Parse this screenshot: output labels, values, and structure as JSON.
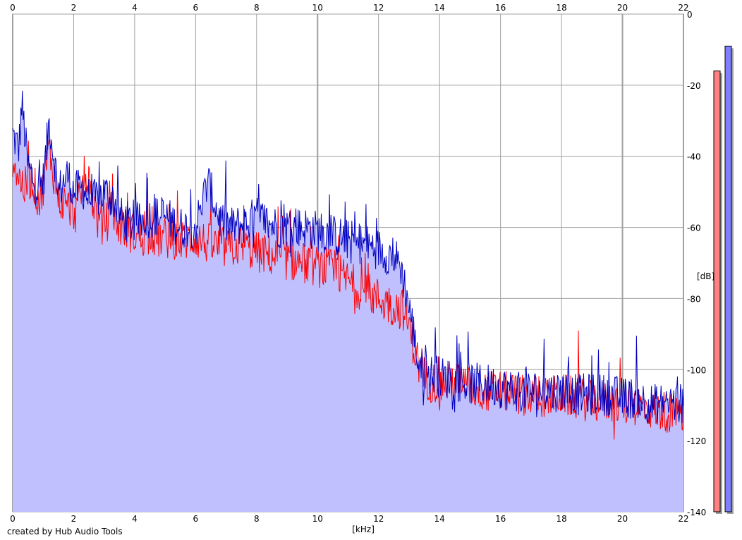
{
  "chart_data": {
    "type": "area",
    "xlabel": "[kHz]",
    "ylabel": "[dB]",
    "xlim": [
      0,
      22
    ],
    "ylim": [
      -140,
      0
    ],
    "x_ticks": [
      "0",
      "2",
      "4",
      "6",
      "8",
      "10",
      "12",
      "14",
      "16",
      "18",
      "20",
      "22"
    ],
    "y_ticks": [
      "0",
      "-20",
      "-40",
      "-60",
      "-80",
      "-100",
      "-120",
      "-140"
    ],
    "grid": true,
    "legend": "none",
    "series": [
      {
        "color": "#0000c0",
        "fill": "#c0c0ff",
        "x": [
          0,
          0.2,
          0.3,
          0.5,
          0.8,
          1.0,
          1.2,
          1.5,
          1.8,
          2.0,
          2.3,
          2.6,
          3.0,
          3.3,
          3.6,
          4.0,
          4.5,
          5.0,
          5.5,
          6.0,
          6.4,
          6.8,
          7.2,
          7.6,
          8.0,
          8.4,
          8.8,
          9.2,
          9.6,
          10.0,
          10.4,
          10.8,
          11.2,
          11.6,
          12.0,
          12.4,
          12.7,
          12.9,
          13.1,
          13.3,
          13.5,
          14.0,
          14.5,
          15.0,
          15.5,
          16.0,
          16.5,
          17.0,
          17.5,
          18.0,
          18.5,
          19.0,
          19.5,
          20.0,
          20.5,
          21.0,
          21.5,
          22.0
        ],
        "values": [
          -34,
          -38,
          -25,
          -43,
          -49,
          -47,
          -30,
          -50,
          -45,
          -50,
          -49,
          -53,
          -50,
          -52,
          -58,
          -59,
          -57,
          -57,
          -60,
          -60,
          -47,
          -58,
          -60,
          -59,
          -57,
          -59,
          -60,
          -60,
          -60,
          -61,
          -62,
          -63,
          -64,
          -65,
          -66,
          -68,
          -70,
          -78,
          -87,
          -98,
          -101,
          -102,
          -103,
          -104,
          -104,
          -105,
          -106,
          -106,
          -106,
          -106,
          -107,
          -107,
          -107,
          -108,
          -108,
          -110,
          -109,
          -110
        ]
      },
      {
        "color": "#ff0000",
        "x": [
          0,
          0.2,
          0.4,
          0.6,
          0.9,
          1.2,
          1.5,
          1.8,
          2.1,
          2.4,
          2.8,
          3.2,
          3.6,
          4.0,
          4.5,
          5.0,
          5.5,
          6.0,
          6.5,
          7.0,
          7.5,
          8.0,
          8.5,
          9.0,
          9.5,
          10.0,
          10.5,
          11.0,
          11.5,
          12.0,
          12.4,
          12.8,
          13.0,
          13.2,
          13.4,
          13.6,
          14.0,
          14.5,
          15.0,
          15.5,
          16.0,
          16.5,
          17.0,
          17.5,
          18.0,
          18.5,
          19.0,
          19.5,
          20.0,
          20.5,
          21.0,
          21.5,
          22.0
        ],
        "values": [
          -40,
          -46,
          -49,
          -46,
          -53,
          -38,
          -52,
          -54,
          -56,
          -45,
          -58,
          -58,
          -60,
          -62,
          -63,
          -63,
          -64,
          -63,
          -65,
          -66,
          -65,
          -67,
          -68,
          -69,
          -70,
          -71,
          -72,
          -75,
          -78,
          -80,
          -82,
          -83,
          -88,
          -95,
          -101,
          -103,
          -104,
          -103,
          -105,
          -106,
          -106,
          -107,
          -107,
          -108,
          -107,
          -108,
          -109,
          -109,
          -110,
          -110,
          -111,
          -112,
          -113
        ]
      }
    ],
    "level_meters": [
      {
        "color": "#ff8080",
        "value_db": -16
      },
      {
        "color": "#8080ff",
        "value_db": -9
      }
    ]
  },
  "footer": {
    "credit": "created by Hub Audio Tools"
  }
}
